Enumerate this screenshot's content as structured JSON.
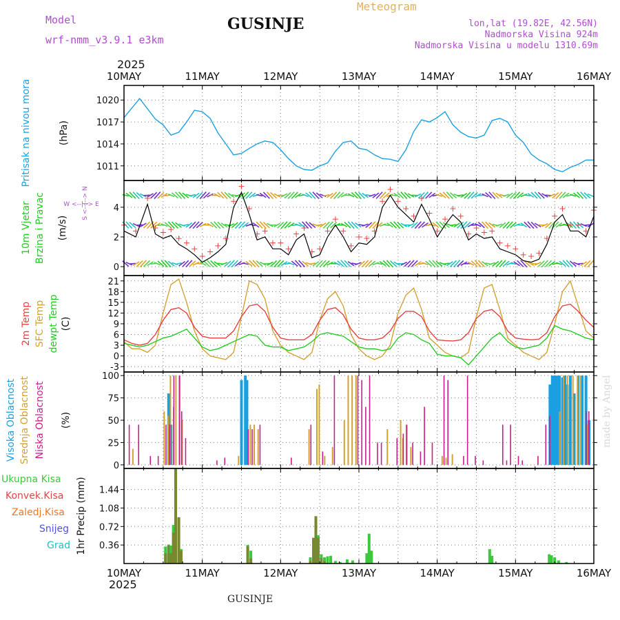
{
  "header": {
    "model_label": "Model",
    "model_name": "wrf-nmm_v3.9.1  e3km",
    "station": "GUSINJE",
    "meteogram_label": "Meteogram",
    "lonlat": "lon,lat (19.82E, 42.56N)",
    "altitude": "Nadmorska Visina 924m",
    "model_altitude": "Nadmorska Visina u modelu 1310.69m",
    "year": "2025",
    "footer_station": "GUSINJE",
    "watermark": "made by Angel"
  },
  "colors": {
    "pressure": "#1aa0e0",
    "wind_green": "#22cc22",
    "temp2m": "#e84040",
    "sfc": "#d4a030",
    "dew": "#22cc22",
    "high_cloud": "#1aa0e0",
    "mid_cloud": "#d4a030",
    "low_cloud": "#c81e8c",
    "precip_total": "#3cc83c",
    "precip_conv": "#e84040",
    "precip_frz": "#e87828",
    "precip_snow": "#5050e0",
    "precip_grad": "#20c0c0",
    "purple": "#b04cd0"
  },
  "chart_data": [
    {
      "id": "pressure",
      "type": "line",
      "ylabel_main": "Pritisak na nivou mora",
      "ylabel_unit": "(hPa)",
      "ylim": [
        1009,
        1022
      ],
      "yticks": [
        1011,
        1014,
        1017,
        1020
      ],
      "x_days": [
        0,
        0.2,
        0.4,
        0.5,
        0.6,
        0.7,
        0.8,
        0.9,
        1.0,
        1.1,
        1.2,
        1.3,
        1.4,
        1.5,
        1.6,
        1.7,
        1.8,
        1.9,
        2.0,
        2.1,
        2.2,
        2.3,
        2.4,
        2.5,
        2.6,
        2.7,
        2.8,
        2.9,
        3.0,
        3.1,
        3.2,
        3.3,
        3.4,
        3.5,
        3.6,
        3.7,
        3.8,
        3.9,
        4.0,
        4.1,
        4.2,
        4.3,
        4.4,
        4.5,
        4.6,
        4.7,
        4.8,
        4.9,
        5.0,
        5.1,
        5.2,
        5.3,
        5.4,
        5.5,
        5.6,
        5.7,
        5.8,
        5.9,
        6.0
      ],
      "values": [
        1017.6,
        1020.2,
        1017.4,
        1016.6,
        1015.2,
        1015.6,
        1017.0,
        1018.6,
        1018.4,
        1017.5,
        1015.5,
        1014.0,
        1012.5,
        1012.7,
        1013.4,
        1014.0,
        1014.4,
        1014.2,
        1013.2,
        1012.0,
        1011.0,
        1010.5,
        1010.4,
        1011.0,
        1011.4,
        1013.0,
        1014.2,
        1014.4,
        1013.4,
        1013.2,
        1012.5,
        1012.0,
        1011.9,
        1011.6,
        1013.2,
        1015.7,
        1017.3,
        1017.0,
        1017.6,
        1018.4,
        1016.6,
        1015.6,
        1015.0,
        1014.8,
        1015.2,
        1017.2,
        1017.5,
        1017.0,
        1015.2,
        1014.2,
        1012.6,
        1011.8,
        1011.3,
        1010.5,
        1010.2,
        1010.8,
        1011.2,
        1011.8,
        1011.8
      ]
    },
    {
      "id": "wind",
      "type": "line",
      "ylabel_main": "10m Vjetar",
      "ylabel_main2": "Brzina i Pravac",
      "ylabel_unit": "(m/s)",
      "compass": "W <--|--> E",
      "compass2": "S <--|--> N",
      "ylim": [
        -0.6,
        5.8
      ],
      "yticks": [
        0,
        2,
        4
      ],
      "x_days": [
        0,
        0.15,
        0.3,
        0.4,
        0.5,
        0.6,
        0.7,
        0.8,
        0.9,
        1.0,
        1.1,
        1.2,
        1.3,
        1.4,
        1.5,
        1.6,
        1.7,
        1.8,
        1.9,
        2.0,
        2.1,
        2.2,
        2.3,
        2.4,
        2.5,
        2.6,
        2.7,
        2.8,
        2.9,
        3.0,
        3.1,
        3.2,
        3.3,
        3.4,
        3.5,
        3.6,
        3.7,
        3.8,
        3.9,
        4.0,
        4.1,
        4.2,
        4.3,
        4.4,
        4.5,
        4.6,
        4.7,
        4.8,
        4.9,
        5.0,
        5.1,
        5.2,
        5.3,
        5.4,
        5.5,
        5.6,
        5.7,
        5.8,
        5.9,
        6.0
      ],
      "values": [
        2.4,
        2.0,
        4.2,
        2.2,
        1.9,
        2.1,
        1.5,
        1.2,
        0.8,
        0.3,
        0.6,
        1.0,
        1.5,
        4.0,
        5.0,
        3.5,
        1.8,
        2.0,
        1.2,
        1.2,
        0.8,
        1.8,
        2.2,
        0.6,
        0.8,
        2.0,
        2.8,
        2.0,
        1.0,
        1.6,
        1.5,
        2.0,
        4.0,
        4.8,
        4.0,
        3.5,
        3.0,
        4.2,
        3.2,
        2.0,
        2.8,
        3.5,
        3.0,
        1.8,
        2.2,
        1.9,
        2.0,
        1.2,
        1.0,
        0.8,
        0.4,
        0.3,
        0.5,
        1.5,
        3.0,
        3.5,
        2.4,
        2.4,
        2.0,
        3.4
      ]
    },
    {
      "id": "temperature",
      "type": "line",
      "ylabel_main": "2m Temp",
      "ylabel_main2": "SFC Temp",
      "ylabel_main3": "dewpt Temp",
      "ylabel_unit": "(C)",
      "ylim": [
        -4.5,
        22.5
      ],
      "yticks": [
        -3,
        0,
        3,
        6,
        9,
        12,
        15,
        18,
        21
      ],
      "series": [
        {
          "name": "SFC Temp",
          "x_days": [
            0,
            0.1,
            0.2,
            0.3,
            0.4,
            0.5,
            0.6,
            0.7,
            0.8,
            0.9,
            1.0,
            1.1,
            1.2,
            1.3,
            1.4,
            1.5,
            1.6,
            1.7,
            1.8,
            1.9,
            2.0,
            2.1,
            2.2,
            2.3,
            2.4,
            2.5,
            2.6,
            2.7,
            2.8,
            2.9,
            3.0,
            3.1,
            3.2,
            3.3,
            3.4,
            3.5,
            3.6,
            3.7,
            3.8,
            3.9,
            4.0,
            4.1,
            4.2,
            4.3,
            4.4,
            4.5,
            4.6,
            4.7,
            4.8,
            4.9,
            5.0,
            5.1,
            5.2,
            5.3,
            5.4,
            5.5,
            5.6,
            5.7,
            5.8,
            5.9,
            6.0
          ],
          "values": [
            4,
            2,
            2,
            1,
            3,
            12,
            20,
            21.5,
            15,
            7,
            2,
            0,
            -0.5,
            -1,
            1,
            11,
            21,
            20,
            16,
            7,
            3,
            1,
            0,
            -1,
            1,
            10,
            16,
            18,
            14,
            6,
            2,
            0,
            -1,
            0,
            3,
            12,
            17,
            19,
            13,
            5,
            3,
            1,
            0,
            -0.5,
            1,
            11,
            19,
            20,
            13,
            5,
            3,
            1,
            0,
            -1,
            1,
            9,
            18,
            21,
            14,
            7,
            5
          ]
        },
        {
          "name": "2m Temp",
          "x_days": [
            0,
            0.1,
            0.2,
            0.3,
            0.4,
            0.5,
            0.6,
            0.7,
            0.8,
            0.9,
            1.0,
            1.1,
            1.2,
            1.3,
            1.4,
            1.5,
            1.6,
            1.7,
            1.8,
            1.9,
            2.0,
            2.1,
            2.2,
            2.3,
            2.4,
            2.5,
            2.6,
            2.7,
            2.8,
            2.9,
            3.0,
            3.1,
            3.2,
            3.3,
            3.4,
            3.5,
            3.6,
            3.7,
            3.8,
            3.9,
            4.0,
            4.1,
            4.2,
            4.3,
            4.4,
            4.5,
            4.6,
            4.7,
            4.8,
            4.9,
            5.0,
            5.1,
            5.2,
            5.3,
            5.4,
            5.5,
            5.6,
            5.7,
            5.8,
            5.9,
            6.0
          ],
          "values": [
            4.5,
            3.5,
            3,
            3.5,
            6,
            10,
            13,
            13.5,
            12,
            8,
            5.5,
            5,
            5,
            5,
            7,
            11,
            14,
            14.5,
            12.5,
            8,
            5,
            4.5,
            4.5,
            4.5,
            6,
            10,
            13,
            13.5,
            11.5,
            7.5,
            5,
            4.5,
            4.5,
            5,
            7,
            10.5,
            12.5,
            12.5,
            11,
            7,
            4.5,
            4.3,
            4.2,
            4.5,
            6.5,
            10.5,
            12.5,
            13,
            11,
            7,
            5,
            4.7,
            4.5,
            4.7,
            6.5,
            11,
            14,
            14.5,
            12.5,
            10,
            8
          ]
        },
        {
          "name": "dewpt Temp",
          "x_days": [
            0,
            0.1,
            0.2,
            0.3,
            0.4,
            0.5,
            0.6,
            0.7,
            0.8,
            0.9,
            1.0,
            1.1,
            1.2,
            1.3,
            1.4,
            1.5,
            1.6,
            1.7,
            1.8,
            1.9,
            2.0,
            2.1,
            2.2,
            2.3,
            2.4,
            2.5,
            2.6,
            2.7,
            2.8,
            2.9,
            3.0,
            3.1,
            3.2,
            3.3,
            3.4,
            3.5,
            3.6,
            3.7,
            3.8,
            3.9,
            4.0,
            4.1,
            4.2,
            4.3,
            4.4,
            4.5,
            4.6,
            4.7,
            4.8,
            4.9,
            5.0,
            5.1,
            5.2,
            5.3,
            5.4,
            5.5,
            5.6,
            5.7,
            5.8,
            5.9,
            6.0
          ],
          "values": [
            3.5,
            3,
            2.5,
            3,
            4,
            5,
            5.5,
            6.5,
            7.5,
            5,
            2.5,
            1.5,
            2,
            3,
            4,
            5,
            6,
            5.5,
            3,
            2.5,
            2.5,
            1.5,
            2,
            2.5,
            4,
            6,
            6.5,
            6,
            5.5,
            4,
            2.5,
            2,
            2,
            1.5,
            2,
            5,
            6.5,
            6,
            4.5,
            3.5,
            0.5,
            0,
            0,
            -0.5,
            -2.5,
            0,
            2.5,
            5,
            6.5,
            4,
            2.5,
            2,
            2.5,
            3,
            5,
            8.5,
            7.5,
            7,
            6,
            5,
            4.5
          ]
        }
      ]
    },
    {
      "id": "clouds",
      "type": "bar",
      "ylabel_main": "Visoka Oblacnost",
      "ylabel_main2": "Srednja Oblacnost",
      "ylabel_main3": "Niska Oblacnost",
      "ylabel_unit": "(%)",
      "ylim": [
        -4,
        104
      ],
      "yticks": [
        0,
        25,
        50,
        75,
        100
      ],
      "series": [
        {
          "name": "Visoka Oblacnost",
          "x_days": [
            0.57,
            0.6,
            1.5,
            1.55,
            1.57,
            5.44,
            5.47,
            5.5,
            5.53,
            5.56,
            5.6,
            5.63,
            5.66,
            5.7,
            5.75,
            5.8,
            5.85,
            5.9,
            5.94
          ],
          "values": [
            80,
            45,
            95,
            100,
            95,
            90,
            100,
            100,
            100,
            100,
            98,
            100,
            90,
            100,
            80,
            100,
            100,
            100,
            50
          ]
        },
        {
          "name": "Srednja Oblacnost",
          "x_days": [
            0.1,
            0.5,
            0.55,
            0.58,
            0.62,
            0.65,
            0.7,
            0.73,
            1.45,
            1.6,
            1.65,
            1.7,
            2.35,
            2.45,
            2.48,
            2.55,
            2.65,
            2.8,
            2.85,
            2.9,
            2.95,
            3.35,
            3.52,
            3.55,
            3.6,
            3.65,
            4.05,
            4.1,
            4.18,
            5.55,
            5.6,
            5.65,
            5.72,
            5.78,
            5.82,
            5.9
          ],
          "values": [
            18,
            60,
            55,
            100,
            65,
            100,
            100,
            50,
            10,
            45,
            45,
            40,
            40,
            85,
            90,
            10,
            20,
            50,
            100,
            100,
            100,
            40,
            50,
            30,
            45,
            20,
            10,
            8,
            12,
            60,
            100,
            100,
            100,
            100,
            100,
            45
          ]
        },
        {
          "name": "Niska Oblacnost",
          "x_days": [
            0.08,
            0.2,
            0.35,
            0.45,
            0.55,
            0.6,
            0.65,
            0.72,
            0.75,
            0.8,
            1.2,
            1.3,
            1.6,
            1.65,
            1.75,
            2.15,
            2.4,
            2.55,
            2.7,
            3.0,
            3.05,
            3.1,
            3.15,
            3.25,
            3.3,
            3.5,
            3.58,
            3.62,
            3.7,
            3.8,
            3.85,
            3.95,
            4.1,
            4.15,
            4.35,
            4.4,
            4.5,
            4.6,
            4.85,
            4.9,
            4.95,
            5.05,
            5.1,
            5.3,
            5.4,
            5.45,
            5.92,
            5.95
          ],
          "values": [
            45,
            45,
            10,
            10,
            45,
            45,
            100,
            100,
            60,
            30,
            5,
            8,
            40,
            40,
            45,
            8,
            45,
            15,
            100,
            100,
            95,
            65,
            100,
            25,
            25,
            30,
            35,
            45,
            25,
            15,
            65,
            25,
            100,
            95,
            10,
            100,
            10,
            5,
            45,
            5,
            45,
            10,
            5,
            10,
            45,
            55,
            60,
            60
          ]
        }
      ]
    },
    {
      "id": "precip",
      "type": "bar",
      "ylabel_main": "1hr Precip",
      "ylabel_unit": "(mm)",
      "legend": [
        "Ukupna Kisa",
        "Konvek.Kisa",
        "Zaledj.Kisa",
        "Snijeg",
        "Grad"
      ],
      "ylim": [
        0,
        1.85
      ],
      "yticks": [
        0.36,
        0.72,
        1.08,
        1.44
      ],
      "x_days": [
        0.53,
        0.57,
        0.6,
        0.63,
        0.66,
        0.7,
        0.73,
        1.58,
        1.62,
        2.38,
        2.42,
        2.45,
        2.48,
        2.52,
        2.56,
        2.6,
        2.64,
        2.7,
        2.76,
        2.85,
        2.92,
        3.1,
        3.13,
        3.16,
        4.67,
        4.7,
        5.43,
        5.46,
        5.5,
        5.55,
        5.65
      ],
      "values": [
        0.33,
        0.37,
        0.35,
        0.75,
        1.85,
        0.9,
        0.28,
        0.36,
        0.25,
        0.12,
        0.5,
        0.92,
        0.55,
        0.18,
        0.12,
        0.14,
        0.15,
        0.05,
        0.03,
        0.08,
        0.06,
        0.2,
        0.58,
        0.25,
        0.28,
        0.15,
        0.18,
        0.16,
        0.12,
        0.06,
        0.03
      ],
      "conv_values": [
        0.2,
        0.35,
        0.2,
        0.6,
        1.85,
        0.9,
        0.25,
        0.34,
        0.1,
        0.05,
        0.5,
        0.92,
        0.5,
        0.1,
        0.05,
        0,
        0,
        0,
        0,
        0,
        0,
        0,
        0,
        0,
        0,
        0,
        0,
        0,
        0,
        0,
        0
      ]
    }
  ],
  "x_axis": {
    "labels": [
      "10MAY",
      "11MAY",
      "12MAY",
      "13MAY",
      "14MAY",
      "15MAY",
      "16MAY"
    ]
  }
}
